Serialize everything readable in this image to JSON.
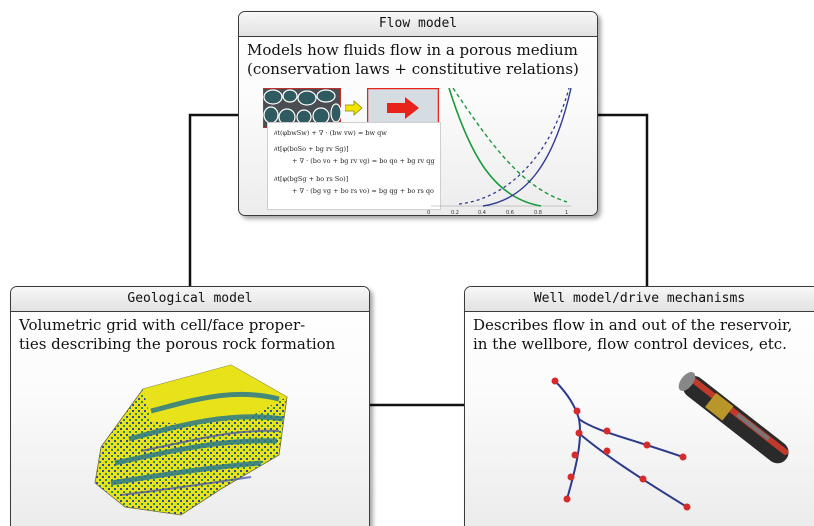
{
  "flow_model": {
    "title": "Flow model",
    "description": [
      "Models how fluids flow in a porous medium",
      "(conservation laws + constitutive relations)"
    ],
    "equations": [
      "∂t(φbwSw) + ∇ · (bw vw) = bw qw",
      "∂t[φ(boSo + bg rv Sg)]",
      "+ ∇ · (bo vo + bg rv vg) = bo qo + bg rv qg",
      "∂t[φ(bgSg + bo rs So)]",
      "+ ∇ · (bg vg + bo rs vo) = bg qg + bo rs qo"
    ],
    "plot_ticks": [
      "0",
      "0.2",
      "0.4",
      "0.6",
      "0.8",
      "1"
    ]
  },
  "geological_model": {
    "title": "Geological model",
    "description": [
      "Volumetric grid with cell/face proper-",
      "ties describing the porous rock formation"
    ]
  },
  "well_model": {
    "title": "Well model/drive mechanisms",
    "description": [
      "Describes flow in and out of the reservoir,",
      "in the wellbore, flow control devices, etc."
    ]
  },
  "colors": {
    "border": "#3b3b3b",
    "arrow_red": "#e8231c",
    "arrow_yellow": "#f2e600",
    "curve_green": "#1a9a3a",
    "curve_blue": "#2e3b8f",
    "well_path": "#2b3a8a",
    "well_node": "#d62b2b",
    "rock_yellow": "#e8e21a",
    "rock_teal": "#2a7a8a"
  }
}
